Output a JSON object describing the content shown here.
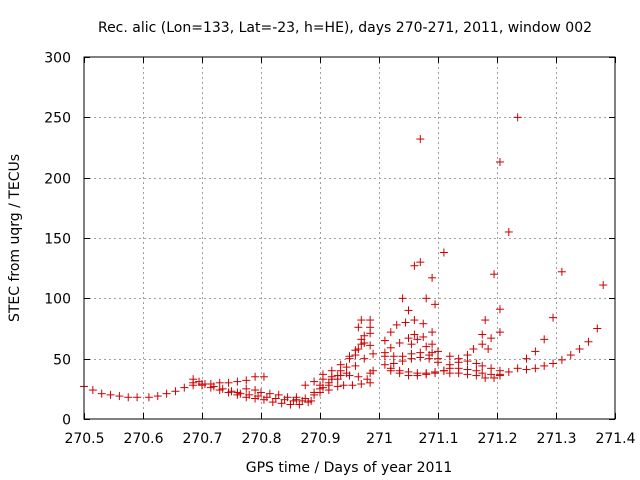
{
  "chart_data": {
    "type": "scatter",
    "title": "Rec. alic (Lon=133, Lat=-23, h=HE), days 270-271, 2011, window 002",
    "xlabel": "GPS time / Days of year 2011",
    "ylabel": "STEC from uqrg / TECUs",
    "xlim": [
      270.5,
      271.4
    ],
    "ylim": [
      0,
      300
    ],
    "x_ticks": [
      270.5,
      270.6,
      270.7,
      270.8,
      270.9,
      271,
      271.1,
      271.2,
      271.3,
      271.4
    ],
    "x_tick_labels": [
      "270.5",
      "270.6",
      "270.7",
      "270.8",
      "270.9",
      "271",
      "271.1",
      "271.2",
      "271.3",
      "271.4"
    ],
    "y_ticks": [
      0,
      50,
      100,
      150,
      200,
      250,
      300
    ],
    "y_tick_labels": [
      "0",
      "50",
      "100",
      "150",
      "200",
      "250",
      "300"
    ],
    "grid": true,
    "marker": "plus",
    "color": "#cc0000",
    "series": [
      {
        "points": [
          [
            270.5,
            27
          ],
          [
            270.515,
            24
          ],
          [
            270.53,
            21
          ],
          [
            270.545,
            20
          ],
          [
            270.56,
            19
          ],
          [
            270.575,
            18
          ],
          [
            270.59,
            18
          ],
          [
            270.61,
            18
          ],
          [
            270.625,
            19
          ],
          [
            270.64,
            21
          ],
          [
            270.655,
            23
          ],
          [
            270.67,
            26
          ],
          [
            270.685,
            28
          ],
          [
            270.7,
            29
          ],
          [
            270.715,
            29
          ],
          [
            270.73,
            30
          ],
          [
            270.745,
            30
          ],
          [
            270.76,
            31
          ],
          [
            270.775,
            32
          ],
          [
            270.79,
            35
          ],
          [
            270.805,
            35
          ],
          [
            270.685,
            33
          ],
          [
            270.695,
            31
          ],
          [
            270.705,
            29
          ],
          [
            270.72,
            27
          ],
          [
            270.735,
            25
          ],
          [
            270.75,
            23
          ],
          [
            270.765,
            21
          ],
          [
            270.78,
            20
          ],
          [
            270.795,
            19
          ],
          [
            270.81,
            18
          ],
          [
            270.825,
            17
          ],
          [
            270.84,
            16
          ],
          [
            270.855,
            15
          ],
          [
            270.87,
            15
          ],
          [
            270.885,
            15
          ],
          [
            270.685,
            30
          ],
          [
            270.7,
            28
          ],
          [
            270.715,
            26
          ],
          [
            270.73,
            24
          ],
          [
            270.745,
            22
          ],
          [
            270.76,
            20
          ],
          [
            270.775,
            18
          ],
          [
            270.79,
            17
          ],
          [
            270.805,
            16
          ],
          [
            270.82,
            14
          ],
          [
            270.835,
            13
          ],
          [
            270.85,
            12
          ],
          [
            270.865,
            12
          ],
          [
            270.88,
            14
          ],
          [
            270.76,
            22
          ],
          [
            270.775,
            25
          ],
          [
            270.79,
            24
          ],
          [
            270.8,
            22
          ],
          [
            270.815,
            21
          ],
          [
            270.83,
            20
          ],
          [
            270.845,
            18
          ],
          [
            270.86,
            16
          ],
          [
            270.875,
            17
          ],
          [
            270.89,
            20
          ],
          [
            270.9,
            22
          ],
          [
            270.915,
            24
          ],
          [
            270.93,
            27
          ],
          [
            270.94,
            28
          ],
          [
            270.955,
            28
          ],
          [
            270.97,
            29
          ],
          [
            270.985,
            30
          ],
          [
            270.86,
            18
          ],
          [
            270.875,
            28
          ],
          [
            270.89,
            31
          ],
          [
            270.905,
            33
          ],
          [
            270.92,
            35
          ],
          [
            270.935,
            36
          ],
          [
            270.95,
            36
          ],
          [
            270.965,
            35
          ],
          [
            270.98,
            33
          ],
          [
            270.9,
            28
          ],
          [
            270.915,
            30
          ],
          [
            270.93,
            33
          ],
          [
            270.945,
            38
          ],
          [
            270.96,
            44
          ],
          [
            270.975,
            50
          ],
          [
            270.99,
            54
          ],
          [
            270.9,
            25
          ],
          [
            270.915,
            28
          ],
          [
            270.93,
            36
          ],
          [
            270.945,
            43
          ],
          [
            270.96,
            53
          ],
          [
            270.97,
            62
          ],
          [
            270.985,
            71
          ],
          [
            270.89,
            22
          ],
          [
            270.905,
            26
          ],
          [
            270.92,
            33
          ],
          [
            270.935,
            40
          ],
          [
            270.95,
            52
          ],
          [
            270.96,
            57
          ],
          [
            270.97,
            66
          ],
          [
            270.985,
            76
          ],
          [
            270.97,
            82
          ],
          [
            270.985,
            82
          ],
          [
            270.905,
            37
          ],
          [
            270.92,
            40
          ],
          [
            270.935,
            45
          ],
          [
            270.95,
            50
          ],
          [
            270.965,
            58
          ],
          [
            270.975,
            63
          ],
          [
            270.985,
            61
          ],
          [
            270.99,
            40
          ],
          [
            270.965,
            76
          ],
          [
            270.975,
            69
          ],
          [
            270.985,
            38
          ],
          [
            271.01,
            65
          ],
          [
            271.02,
            72
          ],
          [
            271.03,
            78
          ],
          [
            271.045,
            80
          ],
          [
            271.06,
            82
          ],
          [
            271.075,
            79
          ],
          [
            271.09,
            72
          ],
          [
            271.01,
            55
          ],
          [
            271.02,
            59
          ],
          [
            271.035,
            63
          ],
          [
            271.05,
            67
          ],
          [
            271.06,
            70
          ],
          [
            271.075,
            68
          ],
          [
            271.09,
            62
          ],
          [
            271.01,
            52
          ],
          [
            271.025,
            52
          ],
          [
            271.04,
            52
          ],
          [
            271.055,
            54
          ],
          [
            271.07,
            55
          ],
          [
            271.085,
            53
          ],
          [
            271.1,
            50
          ],
          [
            271.01,
            45
          ],
          [
            271.025,
            46
          ],
          [
            271.04,
            48
          ],
          [
            271.055,
            50
          ],
          [
            271.07,
            51
          ],
          [
            271.085,
            50
          ],
          [
            271.1,
            47
          ],
          [
            271.02,
            42
          ],
          [
            271.035,
            40
          ],
          [
            271.05,
            39
          ],
          [
            271.065,
            38
          ],
          [
            271.08,
            38
          ],
          [
            271.095,
            39
          ],
          [
            271.11,
            40
          ],
          [
            271.02,
            40
          ],
          [
            271.035,
            38
          ],
          [
            271.05,
            36
          ],
          [
            271.065,
            36
          ],
          [
            271.08,
            37
          ],
          [
            271.095,
            38
          ],
          [
            271.11,
            40
          ],
          [
            271.04,
            100
          ],
          [
            271.05,
            90
          ],
          [
            271.06,
            127
          ],
          [
            271.07,
            130
          ],
          [
            271.08,
            100
          ],
          [
            271.09,
            117
          ],
          [
            271.095,
            95
          ],
          [
            271.11,
            138
          ],
          [
            271.07,
            232
          ],
          [
            271.055,
            62
          ],
          [
            271.065,
            66
          ],
          [
            271.08,
            60
          ],
          [
            271.09,
            55
          ],
          [
            271.1,
            56
          ],
          [
            271.12,
            52
          ],
          [
            271.135,
            50
          ],
          [
            271.15,
            53
          ],
          [
            271.16,
            58
          ],
          [
            271.175,
            62
          ],
          [
            271.19,
            67
          ],
          [
            271.205,
            72
          ],
          [
            271.12,
            45
          ],
          [
            271.135,
            47
          ],
          [
            271.15,
            48
          ],
          [
            271.165,
            46
          ],
          [
            271.175,
            44
          ],
          [
            271.19,
            42
          ],
          [
            271.205,
            40
          ],
          [
            271.12,
            42
          ],
          [
            271.135,
            42
          ],
          [
            271.15,
            41
          ],
          [
            271.165,
            40
          ],
          [
            271.175,
            38
          ],
          [
            271.19,
            37
          ],
          [
            271.205,
            37
          ],
          [
            271.12,
            38
          ],
          [
            271.135,
            38
          ],
          [
            271.15,
            37
          ],
          [
            271.165,
            36
          ],
          [
            271.18,
            34
          ],
          [
            271.195,
            34
          ],
          [
            271.205,
            36
          ],
          [
            271.175,
            70
          ],
          [
            271.18,
            82
          ],
          [
            271.185,
            58
          ],
          [
            271.195,
            120
          ],
          [
            271.205,
            91
          ],
          [
            271.205,
            213
          ],
          [
            271.22,
            155
          ],
          [
            271.235,
            250
          ],
          [
            271.22,
            39
          ],
          [
            271.235,
            42
          ],
          [
            271.25,
            41
          ],
          [
            271.265,
            42
          ],
          [
            271.28,
            44
          ],
          [
            271.295,
            46
          ],
          [
            271.31,
            49
          ],
          [
            271.325,
            53
          ],
          [
            271.34,
            58
          ],
          [
            271.355,
            64
          ],
          [
            271.37,
            75
          ],
          [
            271.38,
            111
          ],
          [
            271.25,
            50
          ],
          [
            271.265,
            56
          ],
          [
            271.28,
            66
          ],
          [
            271.295,
            84
          ],
          [
            271.31,
            122
          ]
        ]
      }
    ]
  }
}
